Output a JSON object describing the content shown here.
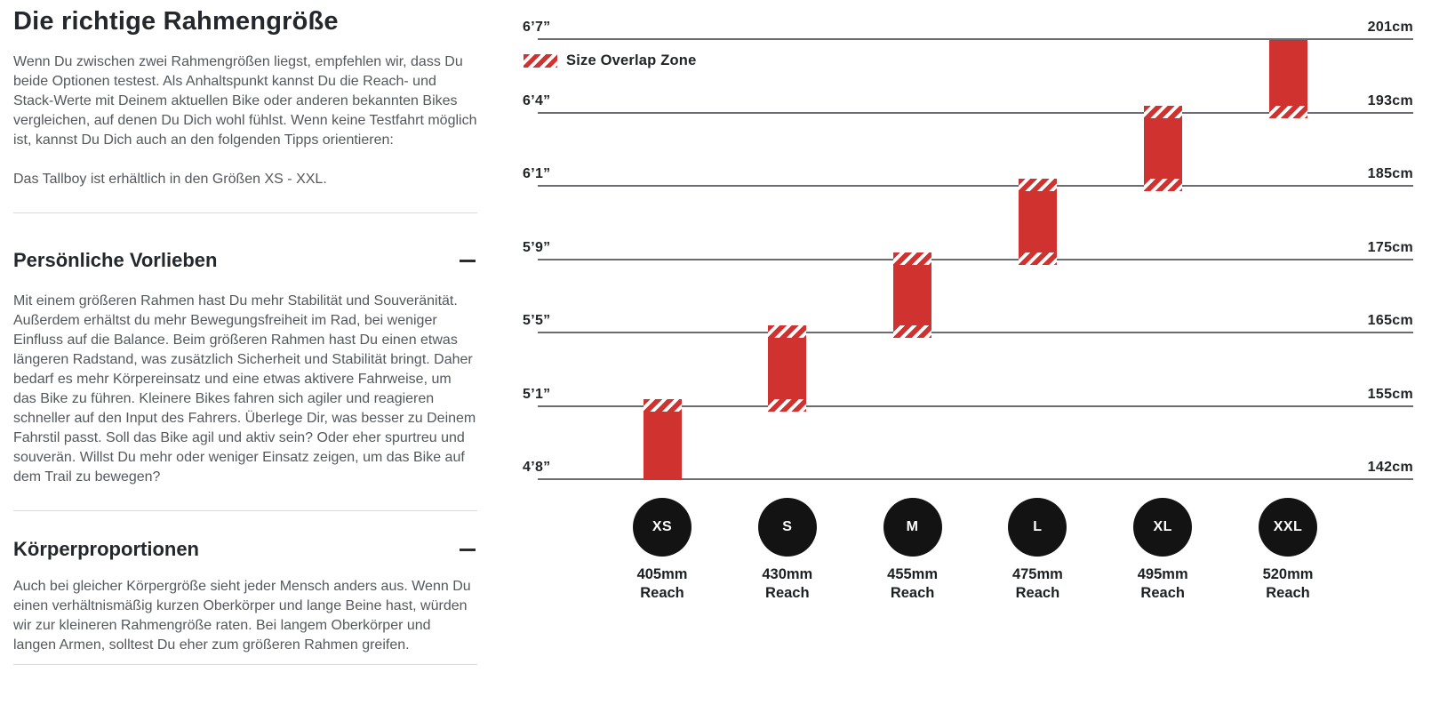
{
  "page": {
    "background": "#ffffff"
  },
  "left": {
    "title": "Die richtige Rahmengröße",
    "intro": "Wenn Du zwischen zwei Rahmengrößen liegst, empfehlen wir, dass Du beide Optionen testest. Als Anhaltspunkt kannst Du die Reach- und Stack-Werte mit Deinem aktuellen Bike oder anderen bekannten Bikes vergleichen, auf denen Du Dich wohl fühlst. Wenn keine Testfahrt möglich ist, kannst Du Dich auch an den folgenden Tipps orientieren:",
    "availability": "Das Tallboy ist erhältlich in den Größen XS - XXL.",
    "sections": [
      {
        "title": "Persönliche Vorlieben",
        "collapse_icon": "minus-icon",
        "expanded": true,
        "body": "Mit einem größeren Rahmen hast Du mehr Stabilität und Souveränität. Außerdem erhältst du mehr Bewegungsfreiheit im Rad, bei weniger Einfluss auf die Balance. Beim größeren Rahmen hast Du einen etwas längeren Radstand, was zusätzlich Sicherheit und Stabilität bringt. Daher bedarf es mehr Körpereinsatz und eine etwas aktivere Fahrweise, um das Bike zu führen. Kleinere Bikes fahren sich agiler und reagieren schneller auf den Input des Fahrers. Überlege Dir, was besser zu Deinem Fahrstil passt. Soll das Bike agil und aktiv sein? Oder eher spurtreu und souverän. Willst Du mehr oder weniger Einsatz zeigen, um das Bike auf dem Trail zu bewegen?"
      },
      {
        "title": "Körperproportionen",
        "collapse_icon": "minus-icon",
        "expanded": true,
        "body": "Auch bei gleicher Körpergröße sieht jeder Mensch anders aus. Wenn Du einen verhältnismäßig kurzen Oberkörper und lange Beine hast, würden wir zur kleineren Rahmengröße raten. Bei langem Oberkörper und langen Armen, solltest Du eher zum größeren Rahmen greifen."
      }
    ]
  },
  "chart_data": {
    "type": "bar",
    "title": "",
    "legend_label": "Size Overlap Zone",
    "legend_position": "top-left",
    "reach_label": "Reach",
    "orientation": "vertical-range-bars",
    "grid": true,
    "ylim_cm": [
      142,
      201
    ],
    "colors": {
      "bar_red": "#d0322f",
      "gridline": "#6b6c6f",
      "bubble_black": "#131313",
      "label_text": "#212427"
    },
    "gridlines": [
      {
        "ft": "6’7”",
        "cm": "201cm"
      },
      {
        "ft": "6’4”",
        "cm": "193cm"
      },
      {
        "ft": "6’1”",
        "cm": "185cm"
      },
      {
        "ft": "5’9”",
        "cm": "175cm"
      },
      {
        "ft": "5’5”",
        "cm": "165cm"
      },
      {
        "ft": "5’1”",
        "cm": "155cm"
      },
      {
        "ft": "4’8”",
        "cm": "142cm"
      }
    ],
    "sizes": [
      {
        "label": "XS",
        "reach": "405mm",
        "range_cm": [
          142,
          155
        ],
        "range_ftin": [
          "4’8”",
          "5’1”"
        ],
        "from_line": 5,
        "to_line": 6,
        "overlap_top": true,
        "overlap_bottom": false
      },
      {
        "label": "S",
        "reach": "430mm",
        "range_cm": [
          155,
          165
        ],
        "range_ftin": [
          "5’1”",
          "5’5”"
        ],
        "from_line": 4,
        "to_line": 5,
        "overlap_top": true,
        "overlap_bottom": true
      },
      {
        "label": "M",
        "reach": "455mm",
        "range_cm": [
          165,
          175
        ],
        "range_ftin": [
          "5’5”",
          "5’9”"
        ],
        "from_line": 3,
        "to_line": 4,
        "overlap_top": true,
        "overlap_bottom": true
      },
      {
        "label": "L",
        "reach": "475mm",
        "range_cm": [
          175,
          185
        ],
        "range_ftin": [
          "5’9”",
          "6’1”"
        ],
        "from_line": 2,
        "to_line": 3,
        "overlap_top": true,
        "overlap_bottom": true
      },
      {
        "label": "XL",
        "reach": "495mm",
        "range_cm": [
          185,
          193
        ],
        "range_ftin": [
          "6’1”",
          "6’4”"
        ],
        "from_line": 1,
        "to_line": 2,
        "overlap_top": true,
        "overlap_bottom": true
      },
      {
        "label": "XXL",
        "reach": "520mm",
        "range_cm": [
          193,
          201
        ],
        "range_ftin": [
          "6’4”",
          "6’7”"
        ],
        "from_line": 0,
        "to_line": 1,
        "overlap_top": false,
        "overlap_bottom": true
      }
    ]
  }
}
